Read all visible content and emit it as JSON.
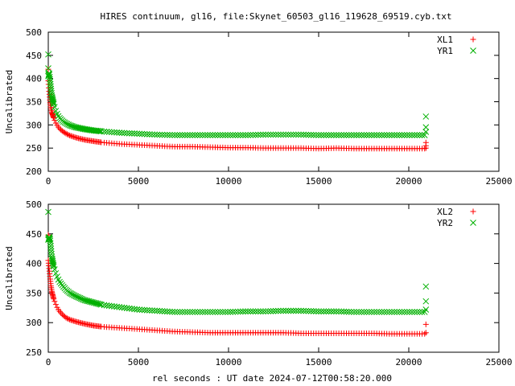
{
  "chart_data": {
    "title": "HIRES continuum, gl16, file:Skynet_60503_gl16_119628_69519.cyb.txt",
    "xlabel": "rel seconds : UT date 2024-07-12T00:58:20.000",
    "panels": [
      {
        "type": "scatter",
        "ylabel": "Uncalibrated",
        "xlim": [
          0,
          25000
        ],
        "ylim": [
          200,
          500
        ],
        "xticks": [
          0,
          5000,
          10000,
          15000,
          20000,
          25000
        ],
        "yticks": [
          200,
          250,
          300,
          350,
          400,
          450,
          500
        ],
        "xtick_labels": [
          "0",
          "5000",
          "10000",
          "15000",
          "20000",
          "25000"
        ],
        "ytick_labels": [
          "200",
          "250",
          "300",
          "350",
          "400",
          "450",
          "500"
        ],
        "legend_position": "top-right",
        "series": [
          {
            "name": "XL1",
            "color": "#ff0000",
            "marker": "plus",
            "x": [
              0,
              50,
              100,
              150,
              200,
              300,
              400,
              500,
              600,
              800,
              1000,
              1200,
              1500,
              2000,
              2500,
              3000,
              4000,
              5000,
              6000,
              7000,
              8000,
              9000,
              10000,
              11000,
              12000,
              13000,
              14000,
              15000,
              16000,
              17000,
              18000,
              19000,
              20000,
              20900
            ],
            "y": [
              395,
              370,
              350,
              338,
              327,
              315,
              305,
              299,
              293,
              286,
              281,
              277,
              273,
              268,
              265,
              262,
              259,
              257,
              255,
              253,
              253,
              252,
              251,
              251,
              250,
              250,
              250,
              249,
              250,
              249,
              249,
              249,
              249,
              249
            ],
            "outliers": [
              [
                0,
                420
              ],
              [
                20950,
                262
              ],
              [
                20950,
                255
              ],
              [
                20950,
                250
              ]
            ]
          },
          {
            "name": "YR1",
            "color": "#00b000",
            "marker": "cross",
            "x": [
              0,
              50,
              100,
              150,
              200,
              300,
              400,
              500,
              600,
              800,
              1000,
              1200,
              1500,
              2000,
              2500,
              3000,
              4000,
              5000,
              6000,
              7000,
              8000,
              9000,
              10000,
              11000,
              12000,
              13000,
              14000,
              15000,
              16000,
              17000,
              18000,
              19000,
              20000,
              20900
            ],
            "y": [
              405,
              412,
              395,
              378,
              362,
              345,
              332,
              323,
              316,
              308,
              303,
              299,
              295,
              291,
              288,
              286,
              283,
              281,
              279,
              278,
              278,
              278,
              278,
              278,
              279,
              279,
              279,
              278,
              278,
              278,
              278,
              278,
              278,
              278
            ],
            "outliers": [
              [
                0,
                452
              ],
              [
                0,
                422
              ],
              [
                20950,
                318
              ],
              [
                20950,
                295
              ],
              [
                20950,
                285
              ]
            ]
          }
        ]
      },
      {
        "type": "scatter",
        "ylabel": "Uncalibrated",
        "xlim": [
          0,
          25000
        ],
        "ylim": [
          250,
          500
        ],
        "xticks": [
          0,
          5000,
          10000,
          15000,
          20000,
          25000
        ],
        "yticks": [
          250,
          300,
          350,
          400,
          450,
          500
        ],
        "xtick_labels": [
          "0",
          "5000",
          "10000",
          "15000",
          "20000",
          "25000"
        ],
        "ytick_labels": [
          "250",
          "300",
          "350",
          "400",
          "450",
          "500"
        ],
        "legend_position": "top-right",
        "series": [
          {
            "name": "XL2",
            "color": "#ff0000",
            "marker": "plus",
            "x": [
              0,
              50,
              100,
              150,
              200,
              300,
              400,
              500,
              600,
              800,
              1000,
              1200,
              1500,
              2000,
              2500,
              3000,
              4000,
              5000,
              6000,
              7000,
              8000,
              9000,
              10000,
              11000,
              12000,
              13000,
              14000,
              15000,
              16000,
              17000,
              18000,
              19000,
              20000,
              20900
            ],
            "y": [
              405,
              390,
              375,
              362,
              352,
              340,
              332,
              325,
              320,
              313,
              308,
              305,
              302,
              298,
              295,
              293,
              291,
              289,
              287,
              285,
              284,
              283,
              283,
              283,
              283,
              283,
              282,
              282,
              282,
              282,
              282,
              281,
              281,
              281
            ],
            "outliers": [
              [
                0,
                448
              ],
              [
                20950,
                297
              ],
              [
                20950,
                283
              ]
            ]
          },
          {
            "name": "YR2",
            "color": "#00b000",
            "marker": "cross",
            "x": [
              0,
              50,
              100,
              150,
              200,
              300,
              400,
              500,
              600,
              800,
              1000,
              1200,
              1500,
              2000,
              2500,
              3000,
              4000,
              5000,
              6000,
              7000,
              8000,
              9000,
              10000,
              11000,
              12000,
              13000,
              14000,
              15000,
              16000,
              17000,
              18000,
              19000,
              20000,
              20900
            ],
            "y": [
              440,
              445,
              440,
              425,
              410,
              395,
              385,
              377,
              370,
              362,
              355,
              350,
              345,
              338,
              334,
              330,
              326,
              322,
              320,
              318,
              318,
              318,
              318,
              319,
              319,
              320,
              320,
              319,
              319,
              318,
              318,
              318,
              318,
              318
            ],
            "outliers": [
              [
                0,
                487
              ],
              [
                20950,
                361
              ],
              [
                20950,
                336
              ],
              [
                20950,
                322
              ]
            ]
          }
        ]
      }
    ]
  }
}
